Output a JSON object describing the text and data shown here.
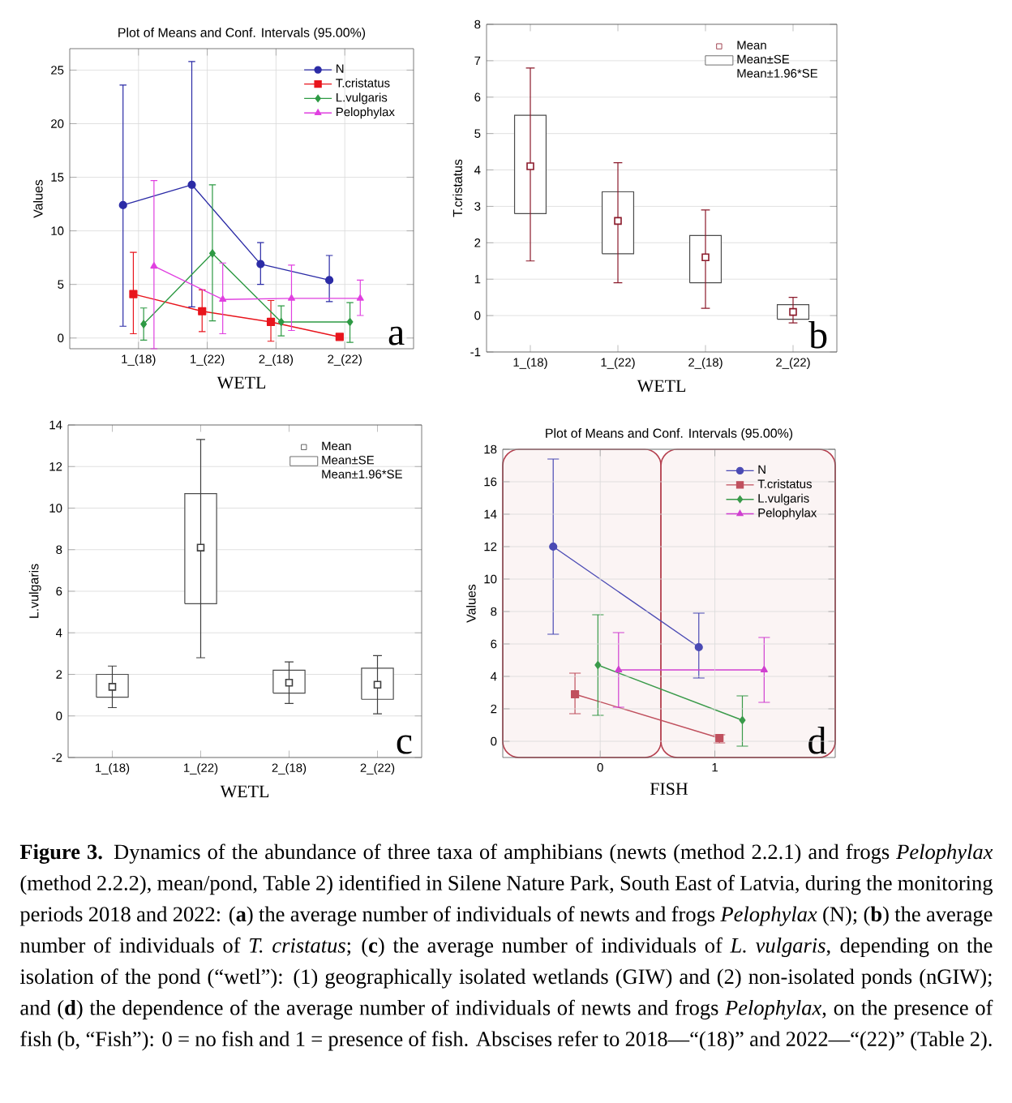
{
  "chart_data": [
    {
      "type": "line",
      "title": "Plot of Means and Conf. Intervals (95.00%)",
      "xlabel": "WETL",
      "ylabel": "Values",
      "categories": [
        "1_(18)",
        "1_(22)",
        "2_(18)",
        "2_(22)"
      ],
      "ylim": [
        -1,
        27
      ],
      "yticks": [
        0,
        5,
        10,
        15,
        20,
        25
      ],
      "grid": true,
      "legend": "top right",
      "annotations": [
        "a"
      ],
      "series": [
        {
          "name": "N",
          "color": "#2b2ba6",
          "marker": "circle",
          "values": [
            12.4,
            14.3,
            6.9,
            5.4
          ],
          "errors": [
            [
              1.1,
              23.6
            ],
            [
              2.9,
              25.8
            ],
            [
              5.0,
              8.9
            ],
            [
              3.4,
              7.7
            ]
          ]
        },
        {
          "name": "T.cristatus",
          "color": "#e8141c",
          "marker": "square",
          "values": [
            4.1,
            2.5,
            1.5,
            0.1
          ],
          "errors": [
            [
              0.4,
              8.0
            ],
            [
              0.6,
              4.5
            ],
            [
              -0.3,
              3.5
            ],
            null
          ]
        },
        {
          "name": "L.vulgaris",
          "color": "#2e9a44",
          "marker": "diamond",
          "values": [
            1.3,
            7.9,
            1.5,
            1.5
          ],
          "errors": [
            [
              -0.2,
              2.8
            ],
            [
              1.6,
              14.3
            ],
            [
              0.2,
              3.0
            ],
            [
              -0.4,
              3.3
            ]
          ]
        },
        {
          "name": "Pelophylax",
          "color": "#e040e0",
          "marker": "triangle",
          "values": [
            6.7,
            3.6,
            3.7,
            3.7
          ],
          "errors": [
            [
              -1,
              14.7
            ],
            [
              0.4,
              7.0
            ],
            [
              0.7,
              6.8
            ],
            [
              2.1,
              5.4
            ]
          ]
        }
      ]
    },
    {
      "type": "bar",
      "xlabel": "WETL",
      "ylabel": "T.cristatus",
      "categories": [
        "1_(18)",
        "1_(22)",
        "2_(18)",
        "2_(22)"
      ],
      "ylim": [
        -1,
        8
      ],
      "yticks": [
        -1,
        0,
        1,
        2,
        3,
        4,
        5,
        6,
        7,
        8
      ],
      "grid": "y",
      "legend": "top right",
      "annotations": [
        "b",
        "Mean±1.96*SE"
      ],
      "series": [
        {
          "name": "Mean",
          "type": "scatter",
          "marker": "square",
          "color": "#8b1a2b",
          "values": [
            4.1,
            2.6,
            1.6,
            0.1
          ],
          "errors": [
            [
              1.5,
              6.8
            ],
            [
              0.9,
              4.2
            ],
            [
              0.2,
              2.9
            ],
            [
              -0.2,
              0.5
            ]
          ]
        },
        {
          "name": "Mean±SE",
          "type": "bar",
          "color": "#ffffff",
          "base": [
            2.8,
            1.7,
            0.9,
            -0.1
          ],
          "values": [
            2.7,
            1.7,
            1.3,
            0.4
          ]
        }
      ]
    },
    {
      "type": "bar",
      "xlabel": "WETL",
      "ylabel": "L.vulgaris",
      "categories": [
        "1_(18)",
        "1_(22)",
        "2_(18)",
        "2_(22)"
      ],
      "ylim": [
        -2,
        14
      ],
      "yticks": [
        -2,
        0,
        2,
        4,
        6,
        8,
        10,
        12,
        14
      ],
      "grid": "y",
      "legend": "top right",
      "annotations": [
        "c",
        "Mean±1.96*SE"
      ],
      "series": [
        {
          "name": "Mean",
          "type": "scatter",
          "marker": "square",
          "color": "#404040",
          "values": [
            1.4,
            8.1,
            1.6,
            1.5
          ],
          "errors": [
            [
              0.4,
              2.4
            ],
            [
              2.8,
              13.3
            ],
            [
              0.6,
              2.6
            ],
            [
              0.1,
              2.9
            ]
          ]
        },
        {
          "name": "Mean±SE",
          "type": "bar",
          "color": "#ffffff",
          "base": [
            0.9,
            5.4,
            1.1,
            0.8
          ],
          "values": [
            1.1,
            5.3,
            1.1,
            1.5
          ]
        }
      ]
    },
    {
      "type": "line",
      "title": "Plot of Means and Conf. Intervals (95.00%)",
      "xlabel": "FISH",
      "ylabel": "Values",
      "xlim": [
        -0.85,
        2.05
      ],
      "xticks": [
        0,
        1
      ],
      "ylim": [
        -1,
        18
      ],
      "yticks": [
        0,
        2,
        4,
        6,
        8,
        10,
        12,
        14,
        16,
        18
      ],
      "grid": true,
      "legend": "top right",
      "bands": [
        {
          "axis": "x",
          "from": -0.85,
          "to": 0.53,
          "color": "#b5404f"
        },
        {
          "axis": "x",
          "from": 0.53,
          "to": 2.05,
          "color": "#b5404f"
        }
      ],
      "annotations": [
        "d",
        "**Figure 3.** Dynamics of the abundance of three taxa of amphibians (newts (method 2.2.1) and frogs *Pelophylax* (method 2.2.2), mean/pond, Table 2) identified in Silene Nature Park, South East of Latvia, during the monitoring periods 2018 and 2022: (**a**) the average number of individuals of newts and frogs *Pelophylax* (N); (**b**) the average number of individuals of *T. cristatus*; (**c**) the average number of individuals of *L. vulgaris*, depending on the isolation of the pond (“wetl”): (1) geographically isolated wetlands (GIW) and (2) non-isolated ponds (nGIW); and (**d**) the dependence of the average number of individuals of newts and frogs *Pelophylax*, on the presence of fish (b, “Fish”): 0 = no fish and 1 = presence of fish. Abscises refer to 2018—“(18)” and 2022—“(22)” (Table 2)."
      ],
      "series": [
        {
          "name": "N",
          "color": "#4a4ab4",
          "marker": "circle",
          "x": [
            -0.41,
            0.86
          ],
          "values": [
            12.0,
            5.8
          ],
          "errors": [
            [
              6.6,
              17.4
            ],
            [
              3.9,
              7.9
            ]
          ]
        },
        {
          "name": "T.cristatus",
          "color": "#c0505e",
          "marker": "square",
          "x": [
            -0.22,
            1.04
          ],
          "values": [
            2.9,
            0.2
          ],
          "errors": [
            [
              1.7,
              4.2
            ],
            [
              -0.1,
              0.4
            ]
          ]
        },
        {
          "name": "L.vulgaris",
          "color": "#3a9a4a",
          "marker": "diamond",
          "x": [
            -0.02,
            1.24
          ],
          "values": [
            4.7,
            1.3
          ],
          "errors": [
            [
              1.6,
              7.8
            ],
            [
              -0.3,
              2.8
            ]
          ]
        },
        {
          "name": "Pelophylax",
          "color": "#d040d0",
          "marker": "triangle",
          "x": [
            0.16,
            1.43
          ],
          "values": [
            4.4,
            4.4
          ],
          "errors": [
            [
              2.1,
              6.7
            ],
            [
              2.4,
              6.4
            ]
          ]
        }
      ]
    }
  ]
}
